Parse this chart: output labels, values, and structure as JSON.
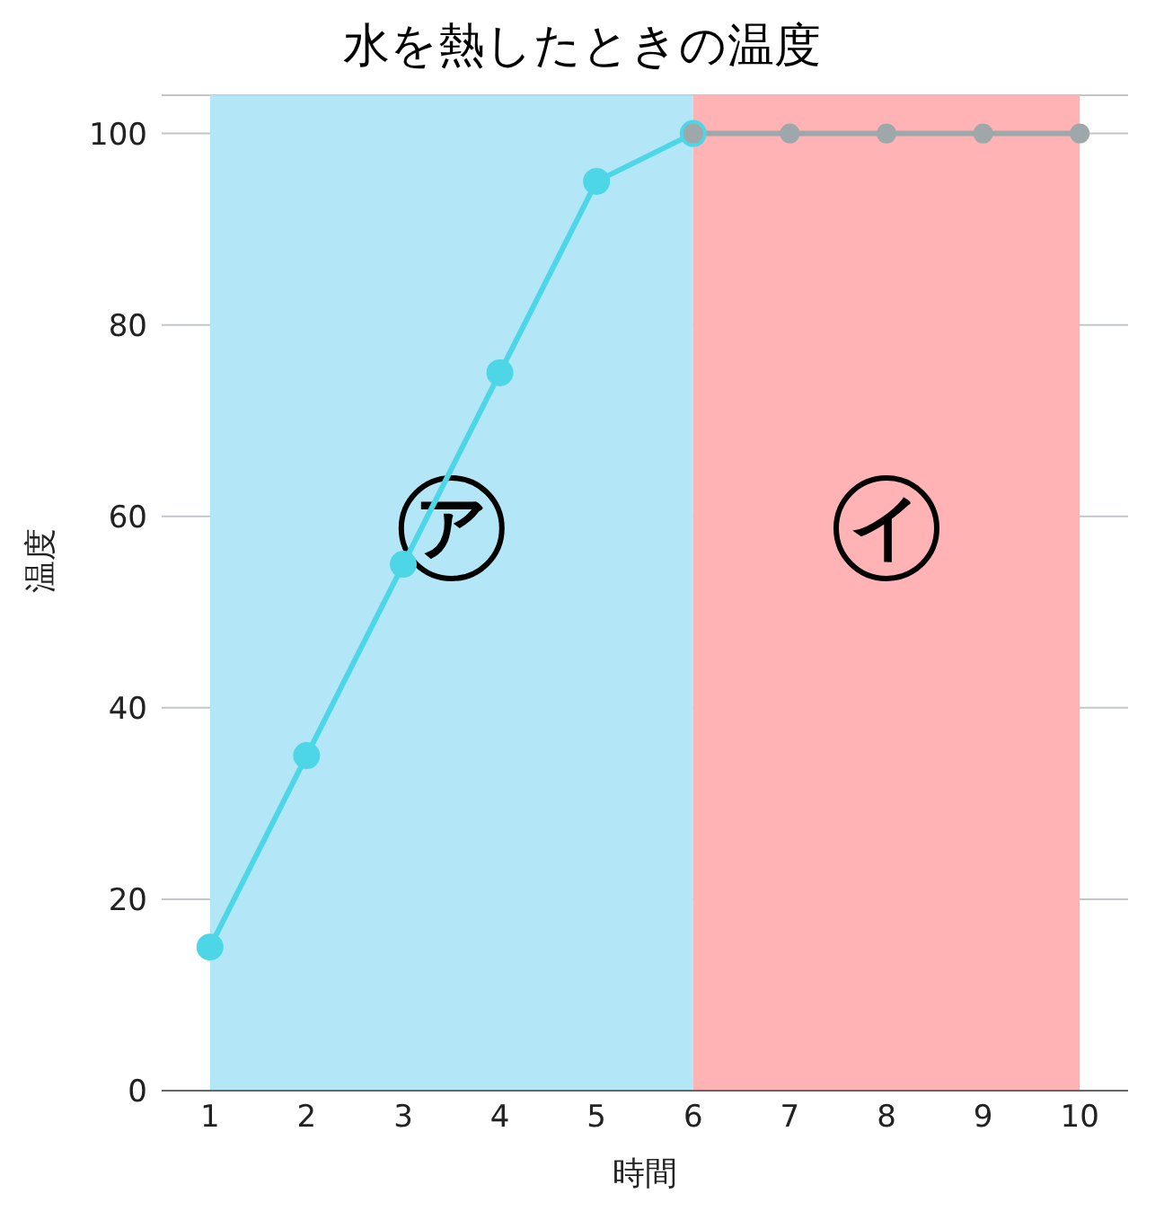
{
  "chart_data": {
    "type": "line",
    "title": "水を熱したときの温度",
    "xlabel": "時間",
    "ylabel": "温度",
    "xlim": [
      0.5,
      10.5
    ],
    "xticks": [
      1,
      2,
      3,
      4,
      5,
      6,
      7,
      8,
      9,
      10
    ],
    "ylim": [
      0,
      104
    ],
    "yticks": [
      0,
      20,
      40,
      60,
      80,
      100
    ],
    "grid": "y",
    "marker": "circle",
    "line_style": "solid",
    "series": [
      {
        "color": "#4dd6e6",
        "x": [
          1,
          2,
          3,
          4,
          5,
          6
        ],
        "values": [
          15,
          35,
          55,
          75,
          95,
          100
        ]
      },
      {
        "color": "#9ea7a9",
        "x": [
          6,
          7,
          8,
          9,
          10
        ],
        "values": [
          100,
          100,
          100,
          100,
          100
        ]
      }
    ],
    "bands": [
      {
        "axis": "x",
        "from": 1,
        "to": 6,
        "label": "ア",
        "color": "#b3e7f7"
      },
      {
        "axis": "x",
        "from": 6,
        "to": 10,
        "label": "イ",
        "color": "#ffb3b5"
      }
    ]
  }
}
